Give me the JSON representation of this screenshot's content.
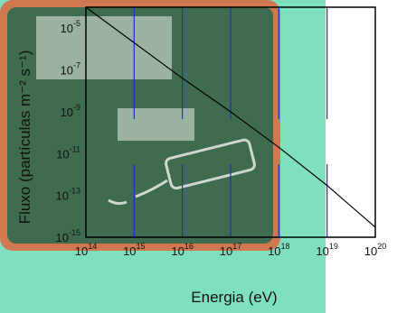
{
  "chart_data": {
    "type": "line",
    "xlabel": "Energia (eV)",
    "ylabel": "Fluxo (partículas m⁻² s⁻¹)",
    "xscale": "log",
    "yscale": "log",
    "xlim": [
      100000000000000.0,
      1e+20
    ],
    "ylim": [
      1e-15,
      0.0001
    ],
    "x_ticks": [
      {
        "base": "10",
        "exp": "14"
      },
      {
        "base": "10",
        "exp": "15"
      },
      {
        "base": "10",
        "exp": "16"
      },
      {
        "base": "10",
        "exp": "17"
      },
      {
        "base": "10",
        "exp": "18"
      },
      {
        "base": "10",
        "exp": "19"
      },
      {
        "base": "10",
        "exp": "20"
      }
    ],
    "y_ticks": [
      {
        "base": "10",
        "exp": "-15",
        "value": 1e-15
      },
      {
        "base": "10",
        "exp": "-13",
        "value": 1e-13
      },
      {
        "base": "10",
        "exp": "-11",
        "value": 1e-11
      },
      {
        "base": "10",
        "exp": "-9",
        "value": 1e-09
      },
      {
        "base": "10",
        "exp": "-7",
        "value": 1e-07
      },
      {
        "base": "10",
        "exp": "-5",
        "value": 1e-05
      }
    ],
    "series": [
      {
        "x": [
          100000000000000.0,
          1000000000000000.0,
          1e+16,
          1e+17,
          1e+18,
          1e+19,
          1e+20
        ],
        "y": [
          0.0001,
          2e-06,
          4e-08,
          1e-09,
          2e-11,
          3e-13,
          3e-15
        ],
        "color": "#000000"
      }
    ],
    "vertical_markers": {
      "x": [
        1000000000000000.0,
        1e+16,
        1e+17,
        1e+18,
        1e+19
      ],
      "color": "#1f2fc0"
    },
    "grid": false,
    "legend": "none"
  },
  "colors": {
    "background_teal": "#7fe0c0",
    "board_green": "#3f6b4f",
    "board_frame": "#d07850",
    "chalk": "#e8ece6"
  }
}
